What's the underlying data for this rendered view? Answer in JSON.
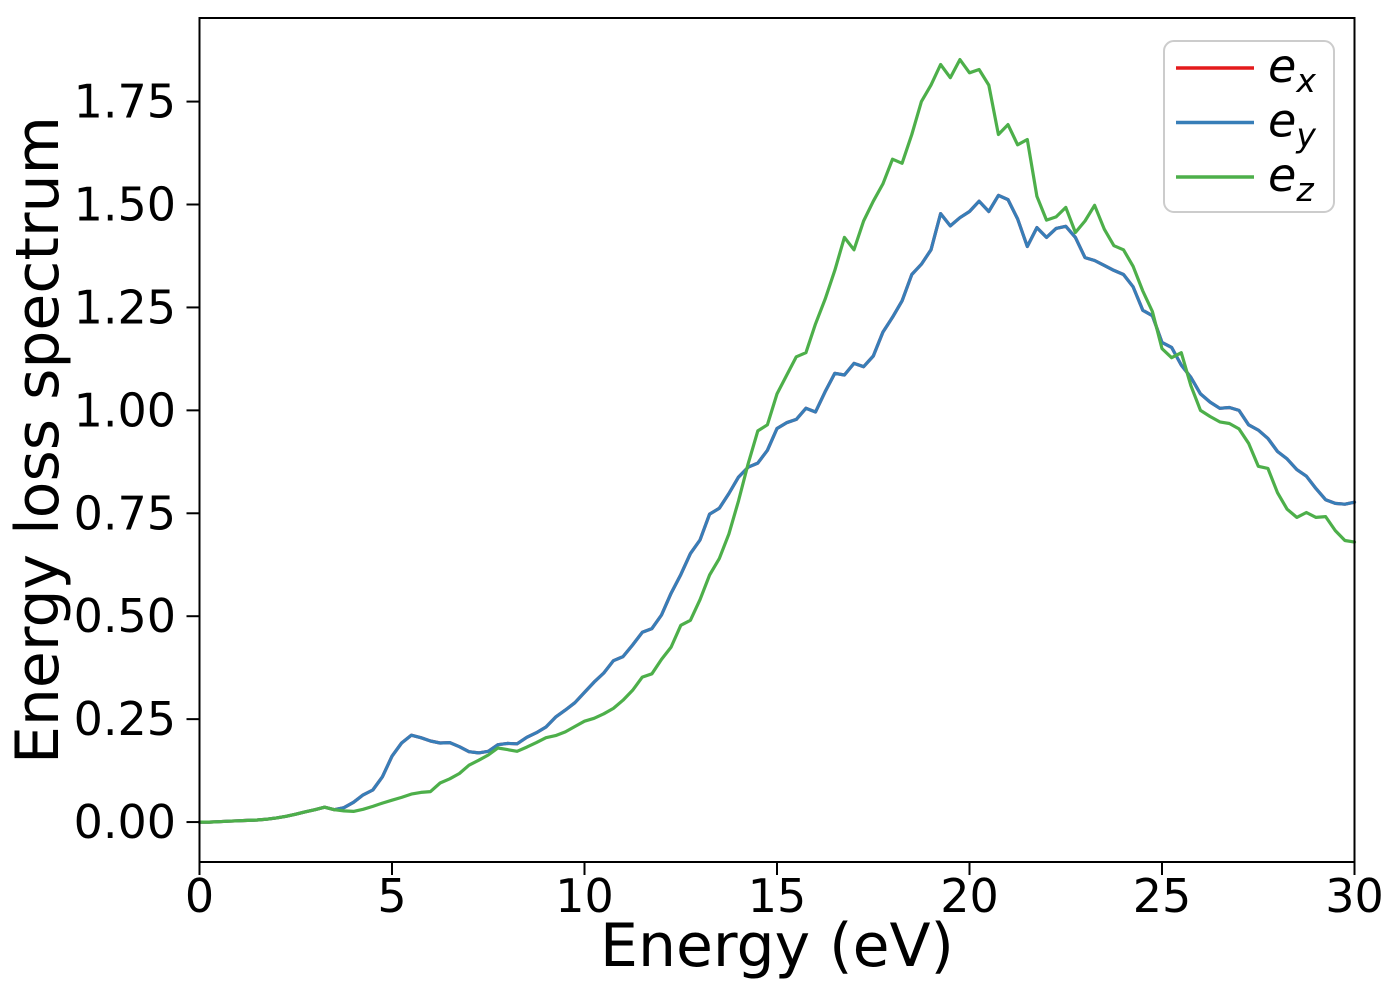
{
  "figure": {
    "background": "#ffffff",
    "axis_color": "#000000"
  },
  "chart_data": {
    "type": "line",
    "title": "",
    "xlabel": "Energy (eV)",
    "ylabel": "Energy loss spectrum",
    "xlim": [
      0,
      30
    ],
    "ylim": [
      -0.097,
      1.953
    ],
    "grid": false,
    "legend": {
      "position": "upper right"
    },
    "xticks": {
      "values": [
        0,
        5,
        10,
        15,
        20,
        25,
        30
      ],
      "labels": [
        "0",
        "5",
        "10",
        "15",
        "20",
        "25",
        "30"
      ]
    },
    "yticks": {
      "values": [
        0.0,
        0.25,
        0.5,
        0.75,
        1.0,
        1.25,
        1.5,
        1.75
      ],
      "labels": [
        "0.00",
        "0.25",
        "0.50",
        "0.75",
        "1.00",
        "1.25",
        "1.50",
        "1.75"
      ]
    },
    "x": [
      0,
      0.25,
      0.5,
      0.75,
      1,
      1.25,
      1.5,
      1.75,
      2,
      2.25,
      2.5,
      2.75,
      3,
      3.25,
      3.5,
      3.75,
      4,
      4.25,
      4.5,
      4.75,
      5,
      5.25,
      5.5,
      5.75,
      6,
      6.25,
      6.5,
      6.75,
      7,
      7.25,
      7.5,
      7.75,
      8,
      8.25,
      8.5,
      8.75,
      9,
      9.25,
      9.5,
      9.75,
      10,
      10.25,
      10.5,
      10.75,
      11,
      11.25,
      11.5,
      11.75,
      12,
      12.25,
      12.5,
      12.75,
      13,
      13.25,
      13.5,
      13.75,
      14,
      14.25,
      14.5,
      14.75,
      15,
      15.25,
      15.5,
      15.75,
      16,
      16.25,
      16.5,
      16.75,
      17,
      17.25,
      17.5,
      17.75,
      18,
      18.25,
      18.5,
      18.75,
      19,
      19.25,
      19.5,
      19.75,
      20,
      20.25,
      20.5,
      20.75,
      21,
      21.25,
      21.5,
      21.75,
      22,
      22.25,
      22.5,
      22.75,
      23,
      23.25,
      23.5,
      23.75,
      24,
      24.25,
      24.5,
      24.75,
      25,
      25.25,
      25.5,
      25.75,
      26,
      26.25,
      26.5,
      26.75,
      27,
      27.25,
      27.5,
      27.75,
      28,
      28.25,
      28.5,
      28.75,
      29,
      29.25,
      29.5,
      29.75,
      30
    ],
    "series": [
      {
        "name": "e_x",
        "label_base": "e",
        "label_sub": "x",
        "color": "#e41a1c",
        "values": [
          0.0,
          0.0,
          0.001,
          0.002,
          0.003,
          0.004,
          0.005,
          0.007,
          0.01,
          0.014,
          0.019,
          0.025,
          0.03,
          0.036,
          0.03,
          0.035,
          0.048,
          0.066,
          0.078,
          0.11,
          0.16,
          0.192,
          0.211,
          0.205,
          0.197,
          0.192,
          0.193,
          0.183,
          0.171,
          0.168,
          0.172,
          0.188,
          0.191,
          0.19,
          0.206,
          0.217,
          0.231,
          0.255,
          0.272,
          0.29,
          0.315,
          0.34,
          0.362,
          0.392,
          0.402,
          0.43,
          0.461,
          0.47,
          0.503,
          0.556,
          0.601,
          0.652,
          0.685,
          0.748,
          0.762,
          0.798,
          0.838,
          0.862,
          0.872,
          0.903,
          0.956,
          0.97,
          0.978,
          1.005,
          0.996,
          1.045,
          1.09,
          1.086,
          1.114,
          1.106,
          1.132,
          1.19,
          1.226,
          1.266,
          1.33,
          1.355,
          1.39,
          1.478,
          1.448,
          1.468,
          1.483,
          1.508,
          1.483,
          1.522,
          1.512,
          1.465,
          1.398,
          1.444,
          1.42,
          1.442,
          1.447,
          1.42,
          1.371,
          1.364,
          1.352,
          1.34,
          1.33,
          1.3,
          1.243,
          1.23,
          1.165,
          1.153,
          1.11,
          1.08,
          1.04,
          1.02,
          1.005,
          1.007,
          1.0,
          0.965,
          0.952,
          0.932,
          0.9,
          0.882,
          0.856,
          0.84,
          0.81,
          0.783,
          0.774,
          0.772,
          0.777
        ]
      },
      {
        "name": "e_y",
        "label_base": "e",
        "label_sub": "y",
        "color": "#377eb8",
        "values": [
          0.0,
          0.0,
          0.001,
          0.002,
          0.003,
          0.004,
          0.005,
          0.007,
          0.01,
          0.014,
          0.019,
          0.025,
          0.03,
          0.036,
          0.03,
          0.035,
          0.048,
          0.066,
          0.078,
          0.11,
          0.16,
          0.192,
          0.211,
          0.205,
          0.197,
          0.192,
          0.193,
          0.183,
          0.171,
          0.168,
          0.172,
          0.188,
          0.191,
          0.19,
          0.206,
          0.217,
          0.231,
          0.255,
          0.272,
          0.29,
          0.315,
          0.34,
          0.362,
          0.392,
          0.402,
          0.43,
          0.461,
          0.47,
          0.503,
          0.556,
          0.601,
          0.652,
          0.685,
          0.748,
          0.762,
          0.798,
          0.838,
          0.862,
          0.872,
          0.903,
          0.956,
          0.97,
          0.978,
          1.005,
          0.996,
          1.045,
          1.09,
          1.086,
          1.114,
          1.106,
          1.132,
          1.19,
          1.226,
          1.266,
          1.33,
          1.355,
          1.39,
          1.478,
          1.448,
          1.468,
          1.483,
          1.508,
          1.483,
          1.522,
          1.512,
          1.465,
          1.398,
          1.444,
          1.42,
          1.442,
          1.447,
          1.42,
          1.371,
          1.364,
          1.352,
          1.34,
          1.33,
          1.3,
          1.243,
          1.23,
          1.165,
          1.153,
          1.11,
          1.08,
          1.04,
          1.02,
          1.005,
          1.007,
          1.0,
          0.965,
          0.952,
          0.932,
          0.9,
          0.882,
          0.856,
          0.84,
          0.81,
          0.783,
          0.774,
          0.772,
          0.777
        ]
      },
      {
        "name": "e_z",
        "label_base": "e",
        "label_sub": "z",
        "color": "#4daf4a",
        "values": [
          0.0,
          0.0,
          0.001,
          0.002,
          0.003,
          0.004,
          0.005,
          0.007,
          0.01,
          0.014,
          0.019,
          0.025,
          0.03,
          0.036,
          0.03,
          0.027,
          0.026,
          0.031,
          0.038,
          0.046,
          0.053,
          0.06,
          0.068,
          0.072,
          0.074,
          0.095,
          0.105,
          0.118,
          0.138,
          0.15,
          0.163,
          0.18,
          0.176,
          0.172,
          0.182,
          0.193,
          0.205,
          0.21,
          0.219,
          0.232,
          0.245,
          0.252,
          0.263,
          0.276,
          0.296,
          0.32,
          0.352,
          0.36,
          0.395,
          0.425,
          0.478,
          0.49,
          0.54,
          0.6,
          0.64,
          0.7,
          0.78,
          0.87,
          0.95,
          0.965,
          1.04,
          1.085,
          1.13,
          1.14,
          1.21,
          1.27,
          1.34,
          1.42,
          1.39,
          1.46,
          1.508,
          1.55,
          1.61,
          1.6,
          1.67,
          1.75,
          1.79,
          1.84,
          1.808,
          1.852,
          1.82,
          1.828,
          1.79,
          1.67,
          1.694,
          1.645,
          1.658,
          1.52,
          1.462,
          1.47,
          1.493,
          1.432,
          1.46,
          1.498,
          1.44,
          1.4,
          1.39,
          1.35,
          1.29,
          1.24,
          1.15,
          1.128,
          1.14,
          1.06,
          1.0,
          0.985,
          0.972,
          0.968,
          0.955,
          0.92,
          0.864,
          0.859,
          0.8,
          0.76,
          0.74,
          0.752,
          0.74,
          0.742,
          0.708,
          0.684,
          0.68
        ]
      }
    ]
  }
}
